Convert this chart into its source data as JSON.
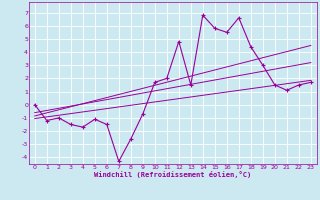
{
  "xlabel": "Windchill (Refroidissement éolien,°C)",
  "ylabel": "",
  "bg_color": "#cce8f0",
  "line_color": "#990099",
  "grid_color": "#ffffff",
  "xlim": [
    -0.5,
    23.5
  ],
  "ylim": [
    -4.5,
    7.8
  ],
  "xticks": [
    0,
    1,
    2,
    3,
    4,
    5,
    6,
    7,
    8,
    9,
    10,
    11,
    12,
    13,
    14,
    15,
    16,
    17,
    18,
    19,
    20,
    21,
    22,
    23
  ],
  "yticks": [
    -4,
    -3,
    -2,
    -1,
    0,
    1,
    2,
    3,
    4,
    5,
    6,
    7
  ],
  "data_x": [
    0,
    1,
    2,
    3,
    4,
    5,
    6,
    7,
    8,
    9,
    10,
    11,
    12,
    13,
    14,
    15,
    16,
    17,
    18,
    19,
    20,
    21,
    22,
    23
  ],
  "data_y": [
    0,
    -1.2,
    -1.0,
    -1.5,
    -1.7,
    -1.1,
    -1.5,
    -4.3,
    -2.6,
    -0.7,
    1.7,
    2.0,
    4.8,
    1.5,
    6.8,
    5.8,
    5.5,
    6.6,
    4.4,
    3.0,
    1.5,
    1.1,
    1.5,
    1.7
  ],
  "reg_line": {
    "x0": 0,
    "y0": -0.85,
    "x1": 23,
    "y1": 4.5
  },
  "upper_line": {
    "x0": 0,
    "y0": -0.6,
    "x1": 23,
    "y1": 3.2
  },
  "lower_line": {
    "x0": 0,
    "y0": -1.05,
    "x1": 23,
    "y1": 1.85
  },
  "figsize": [
    3.2,
    2.0
  ],
  "dpi": 100
}
